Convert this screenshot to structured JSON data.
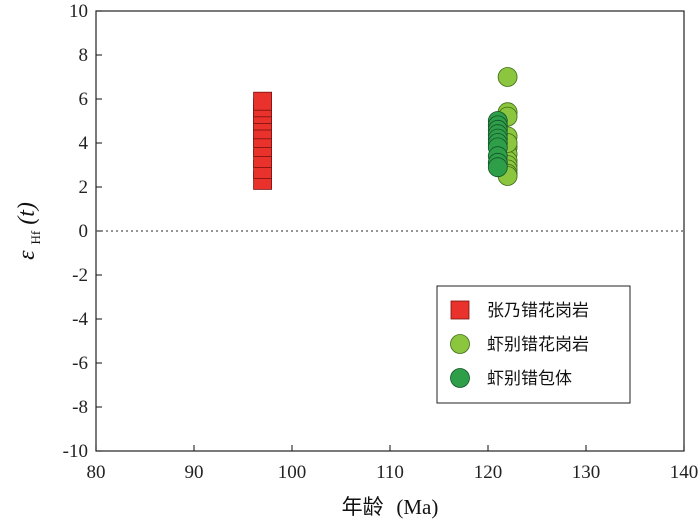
{
  "chart_data": {
    "type": "scatter",
    "xlabel_main": "年龄",
    "xlabel_unit": "(Ma)",
    "ylabel_symbol": "ε",
    "ylabel_sub": "Hf",
    "ylabel_arg": "(t)",
    "xlim": [
      80,
      140
    ],
    "ylim": [
      -10,
      10
    ],
    "xticks": [
      80,
      90,
      100,
      110,
      120,
      130,
      140
    ],
    "yticks": [
      -10,
      -8,
      -6,
      -4,
      -2,
      0,
      2,
      4,
      6,
      8,
      10
    ],
    "reference_line": {
      "y": 0,
      "style": "dotted"
    },
    "legend_position": "lower-right",
    "series": [
      {
        "name": "张乃错花岗岩",
        "marker": "square",
        "color": "#e8322b",
        "x": [
          97,
          97,
          97,
          97,
          97,
          97,
          97,
          97,
          97,
          97
        ],
        "y": [
          2.3,
          2.8,
          3.3,
          3.8,
          4.2,
          4.6,
          5.0,
          5.3,
          5.6,
          5.9
        ]
      },
      {
        "name": "虾别错花岗岩",
        "marker": "circle",
        "color": "#8cc63e",
        "x": [
          122,
          122,
          122,
          122,
          122,
          122,
          122,
          122,
          122,
          122,
          122,
          122
        ],
        "y": [
          7.0,
          5.4,
          5.2,
          4.3,
          3.8,
          3.5,
          3.2,
          3.0,
          2.8,
          2.6,
          2.5,
          4.0
        ]
      },
      {
        "name": "虾别错包体",
        "marker": "circle",
        "color": "#2e9e48",
        "x": [
          121,
          121,
          121,
          121,
          121,
          121,
          121,
          121,
          121,
          121
        ],
        "y": [
          5.0,
          4.8,
          4.6,
          4.4,
          4.2,
          4.0,
          3.8,
          3.4,
          3.1,
          2.9
        ]
      }
    ]
  }
}
